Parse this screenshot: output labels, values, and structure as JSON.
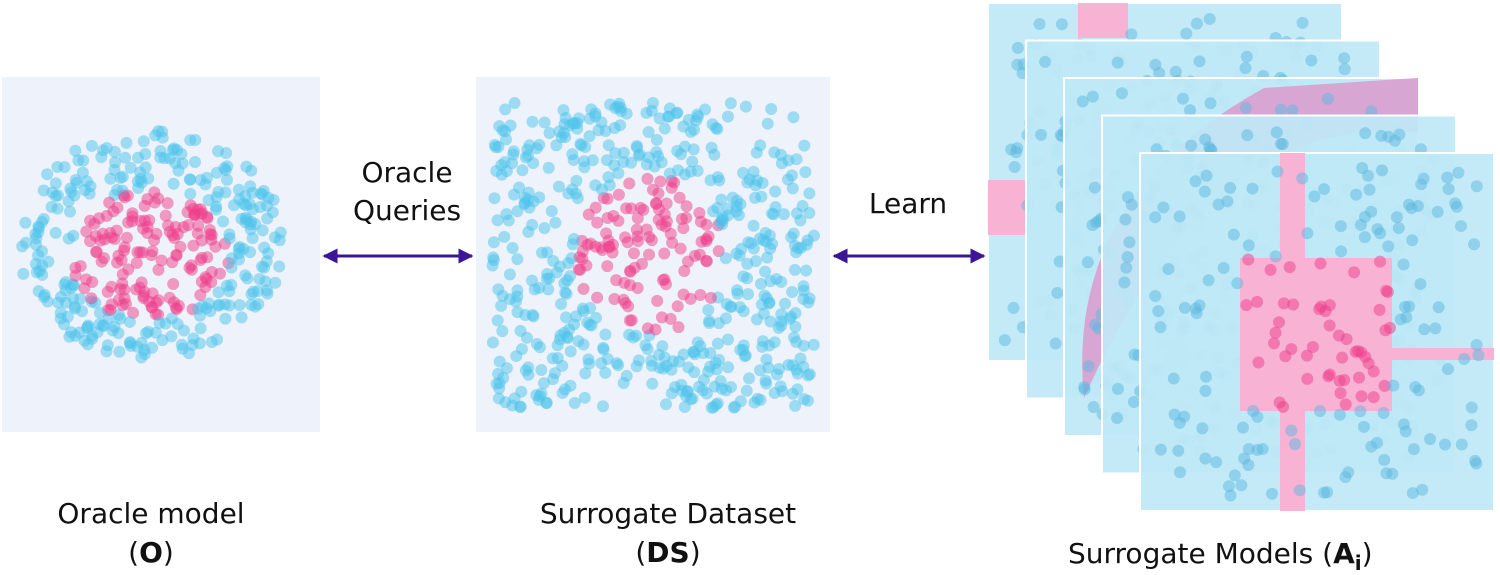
{
  "nodes": [
    {
      "label": "Oracle model",
      "symbol": {
        "open": "(",
        "text": "O",
        "close": ")"
      }
    },
    {
      "label": "Surrogate Dataset",
      "symbol": {
        "open": "(",
        "text": "DS",
        "close": ")"
      }
    },
    {
      "label": "Surrogate Models",
      "symbol": {
        "open": "(",
        "text": "A",
        "subscript": "i",
        "close": ")"
      }
    }
  ],
  "edges": [
    {
      "label_lines": [
        "Oracle",
        "Queries"
      ]
    },
    {
      "label_lines": [
        "Learn"
      ]
    }
  ]
}
